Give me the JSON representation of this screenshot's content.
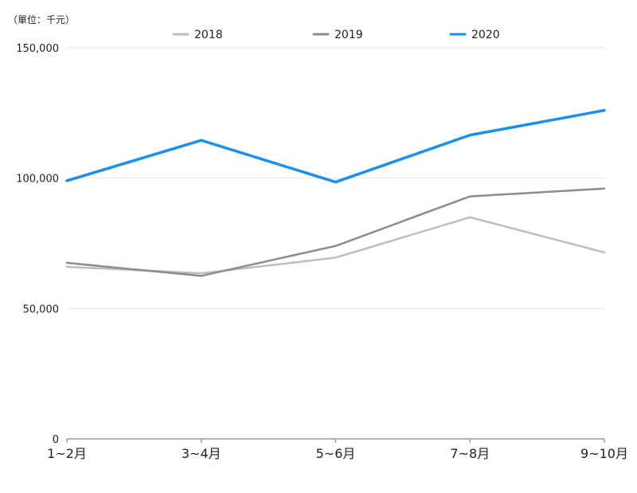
{
  "chart_data": {
    "type": "line",
    "unit_label": "（單位：千元）",
    "categories": [
      "1~2月",
      "3~4月",
      "5~6月",
      "7~8月",
      "9~10月"
    ],
    "y_ticks": [
      "0",
      "50,000",
      "100,000",
      "150,000"
    ],
    "ylim": [
      0,
      150000
    ],
    "grid": true,
    "legend_position": "top",
    "series": [
      {
        "name": "2018",
        "color": "#bdbdbd",
        "values": [
          66000,
          63500,
          69500,
          85000,
          71500
        ]
      },
      {
        "name": "2019",
        "color": "#8c8c8c",
        "values": [
          67500,
          62500,
          74000,
          93000,
          96000
        ]
      },
      {
        "name": "2020",
        "color": "#1b8ff0",
        "values": [
          99000,
          114500,
          98500,
          116500,
          126000
        ]
      }
    ]
  }
}
